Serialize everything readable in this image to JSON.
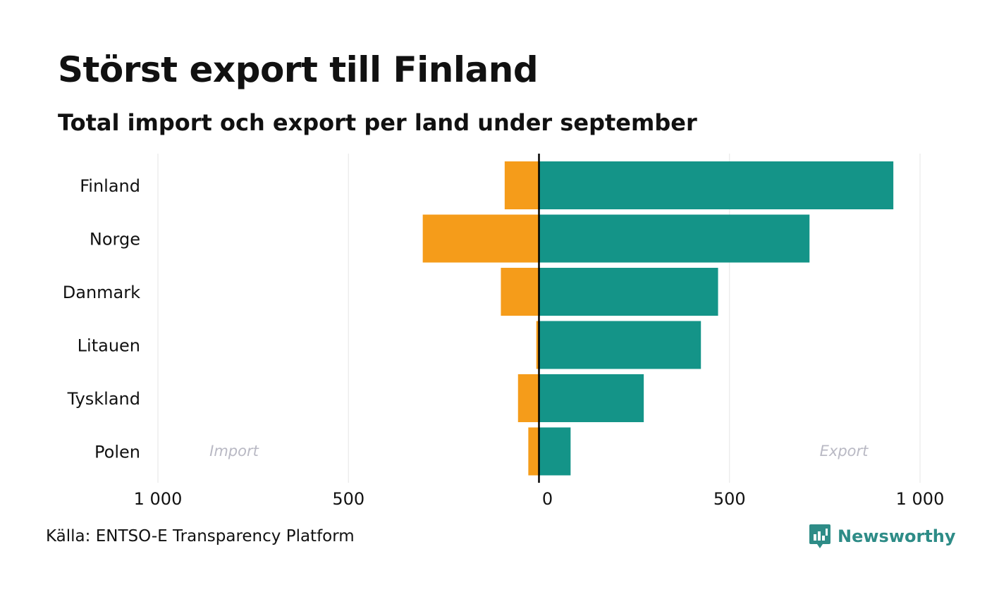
{
  "colors": {
    "import": "#f59c1a",
    "export": "#149488",
    "brand": "#2e8c87",
    "side_label": "#b9b9c4",
    "grid": "#e6e6e6"
  },
  "brand": {
    "name": "Newsworthy",
    "icon": "newsworthy-logo-icon"
  },
  "source": "Källa: ENTSO-E Transparency Platform",
  "chart_data": {
    "type": "bar",
    "orientation": "horizontal-diverging",
    "title": "Störst export till Finland",
    "subtitle": "Total import och export per land under september",
    "categories": [
      "Finland",
      "Norge",
      "Danmark",
      "Litauen",
      "Tyskland",
      "Polen"
    ],
    "series": [
      {
        "name": "Import",
        "values": [
          90,
          305,
          100,
          7,
          55,
          28
        ]
      },
      {
        "name": "Export",
        "values": [
          930,
          710,
          470,
          425,
          275,
          83
        ]
      }
    ],
    "side_labels": {
      "left": "Import",
      "right": "Export"
    },
    "xlim": [
      -1000,
      1000
    ],
    "xticks": [
      -1000,
      -500,
      0,
      500,
      1000
    ],
    "xtick_labels": [
      "1 000",
      "500",
      "0",
      "500",
      "1 000"
    ],
    "xlabel": "",
    "ylabel": "",
    "grid": true
  }
}
